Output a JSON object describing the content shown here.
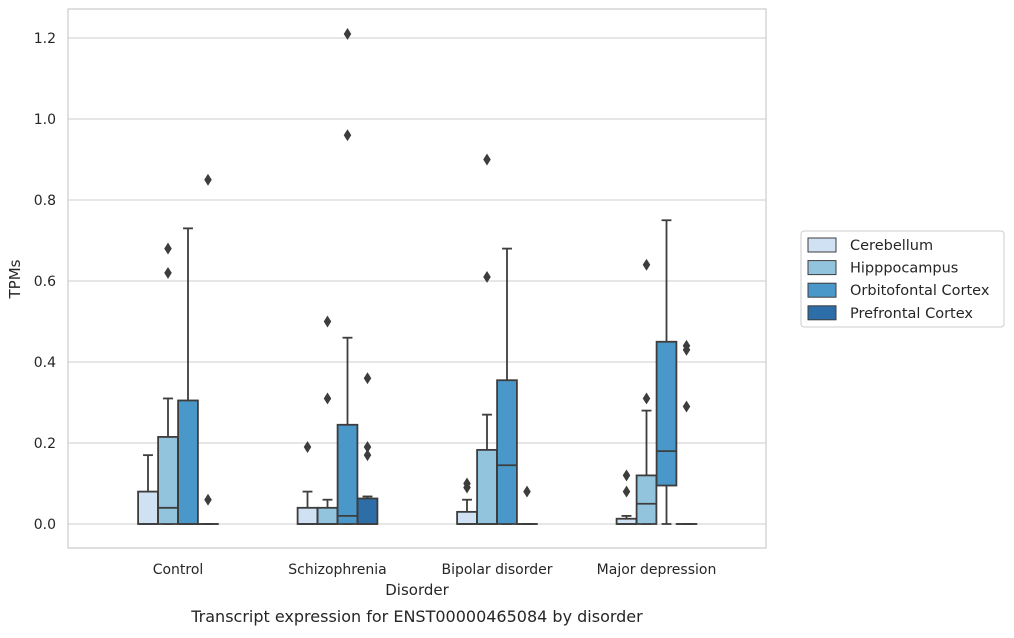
{
  "chart_data": {
    "type": "box",
    "xlabel": "Disorder",
    "ylabel": "TPMs",
    "caption": "Transcript expression for ENST00000465084 by disorder",
    "categories": [
      "Control",
      "Schizophrenia",
      "Bipolar disorder",
      "Major depression"
    ],
    "ylim": [
      -0.06,
      1.27
    ],
    "yticks": [
      "0.0",
      "0.2",
      "0.4",
      "0.6",
      "0.8",
      "1.0",
      "1.2"
    ],
    "grid": "horizontal",
    "legend_position": "right",
    "series": [
      {
        "name": "Cerebellum",
        "color": "#cfe1f2",
        "boxes": [
          {
            "q1": 0,
            "median": 0,
            "q3": 0.08,
            "whisker_low": 0,
            "whisker_high": 0.17,
            "outliers": []
          },
          {
            "q1": 0,
            "median": 0,
            "q3": 0.04,
            "whisker_low": 0,
            "whisker_high": 0.08,
            "outliers": [
              0.19
            ]
          },
          {
            "q1": 0,
            "median": 0,
            "q3": 0.03,
            "whisker_low": 0,
            "whisker_high": 0.06,
            "outliers": [
              0.09,
              0.1
            ]
          },
          {
            "q1": 0,
            "median": 0,
            "q3": 0.013,
            "whisker_low": 0,
            "whisker_high": 0.02,
            "outliers": [
              0.08,
              0.12
            ]
          }
        ]
      },
      {
        "name": "Hipppocampus",
        "color": "#93c4de",
        "boxes": [
          {
            "q1": 0,
            "median": 0.04,
            "q3": 0.215,
            "whisker_low": 0,
            "whisker_high": 0.31,
            "outliers": [
              0.62,
              0.68
            ]
          },
          {
            "q1": 0,
            "median": 0,
            "q3": 0.04,
            "whisker_low": 0,
            "whisker_high": 0.06,
            "outliers": [
              0.31,
              0.5
            ]
          },
          {
            "q1": 0,
            "median": 0,
            "q3": 0.183,
            "whisker_low": 0,
            "whisker_high": 0.27,
            "outliers": [
              0.61,
              0.9
            ]
          },
          {
            "q1": 0,
            "median": 0.05,
            "q3": 0.12,
            "whisker_low": 0,
            "whisker_high": 0.28,
            "outliers": [
              0.31,
              0.64
            ]
          }
        ]
      },
      {
        "name": "Orbitofontal Cortex",
        "color": "#4a98c9",
        "boxes": [
          {
            "q1": 0,
            "median": 0,
            "q3": 0.305,
            "whisker_low": 0,
            "whisker_high": 0.73,
            "outliers": []
          },
          {
            "q1": 0,
            "median": 0.02,
            "q3": 0.245,
            "whisker_low": 0,
            "whisker_high": 0.46,
            "outliers": [
              0.96,
              1.21
            ]
          },
          {
            "q1": 0,
            "median": 0.145,
            "q3": 0.355,
            "whisker_low": 0,
            "whisker_high": 0.68,
            "outliers": []
          },
          {
            "q1": 0.095,
            "median": 0.18,
            "q3": 0.45,
            "whisker_low": 0,
            "whisker_high": 0.75,
            "outliers": []
          }
        ]
      },
      {
        "name": "Prefrontal Cortex",
        "color": "#2d6ea9",
        "boxes": [
          {
            "q1": 0,
            "median": 0,
            "q3": 0,
            "whisker_low": 0,
            "whisker_high": 0,
            "outliers": [
              0.06,
              0.85
            ]
          },
          {
            "q1": 0,
            "median": 0,
            "q3": 0.063,
            "whisker_low": 0,
            "whisker_high": 0.068,
            "outliers": [
              0.17,
              0.19,
              0.36
            ]
          },
          {
            "q1": 0,
            "median": 0,
            "q3": 0,
            "whisker_low": 0,
            "whisker_high": 0,
            "outliers": [
              0.08
            ]
          },
          {
            "q1": 0,
            "median": 0,
            "q3": 0,
            "whisker_low": 0,
            "whisker_high": 0,
            "outliers": [
              0.29,
              0.43,
              0.44
            ]
          }
        ]
      }
    ]
  }
}
